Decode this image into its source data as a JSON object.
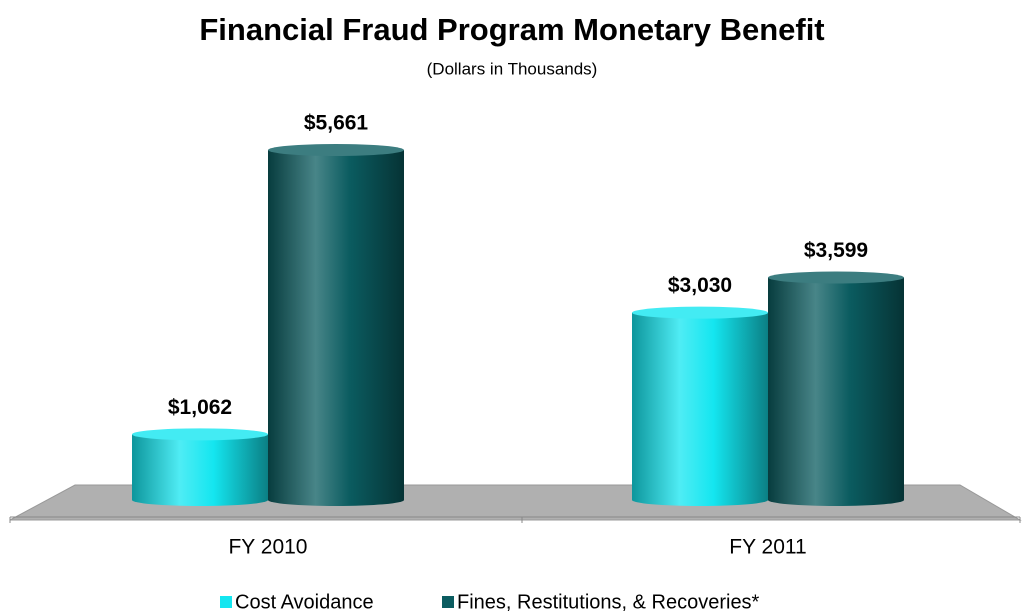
{
  "chart_data": {
    "type": "bar3d",
    "title": "Financial Fraud Program Monetary Benefit",
    "subtitle": "(Dollars in Thousands)",
    "categories": [
      "FY 2010",
      "FY 2011"
    ],
    "series": [
      {
        "name": "Cost Avoidance",
        "color": "#14e6f0",
        "values": [
          1062,
          3030
        ],
        "value_labels": [
          "$1,062",
          "$3,030"
        ]
      },
      {
        "name": "Fines, Restitutions, & Recoveries*",
        "color": "#0b5c60",
        "values": [
          5661,
          3599
        ],
        "value_labels": [
          "$5,661",
          "$3,599"
        ]
      }
    ],
    "legend": "bottom"
  }
}
